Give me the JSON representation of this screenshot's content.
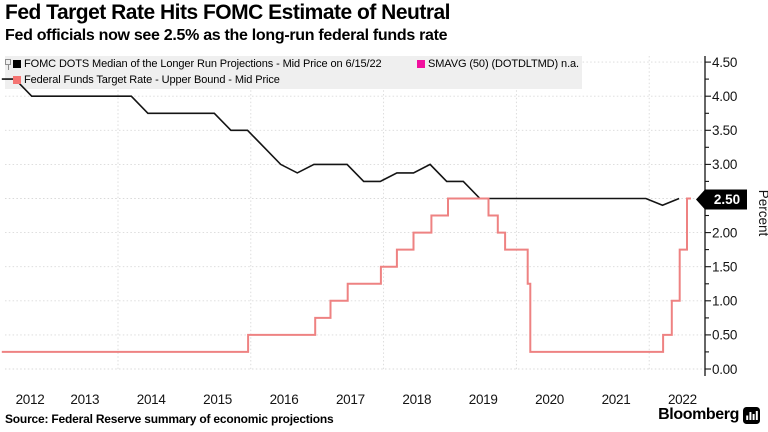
{
  "chart_data": {
    "type": "line",
    "title": "Fed Target Rate Hits FOMC Estimate of Neutral",
    "subtitle": "Fed officials now see 2.5% as the long-run federal funds rate",
    "legend_position": "top-left",
    "x_axis": {
      "tick_years": [
        "2012",
        "2013",
        "2014",
        "2015",
        "2016",
        "2017",
        "2018",
        "2019",
        "2020",
        "2021",
        "2022"
      ],
      "gridline_years": [
        2014,
        2016,
        2018,
        2020,
        2022
      ],
      "range": [
        2012.25,
        2022.85
      ]
    },
    "y_axis": {
      "label": "Percent",
      "side": "right",
      "range": [
        0,
        4.5
      ],
      "ticks": [
        "4.50",
        "4.00",
        "3.50",
        "3.00",
        "2.50",
        "2.00",
        "1.50",
        "1.00",
        "0.50",
        "0.00"
      ],
      "minor_tick_step": 0.25,
      "last_value_tag": "2.50"
    },
    "series": [
      {
        "name": "FOMC DOTS Median of the Longer Run Projections - Mid Price on 6/15/22",
        "color": "#141414",
        "mode": "linear",
        "points": [
          [
            2012.25,
            4.25
          ],
          [
            2012.45,
            4.25
          ],
          [
            2012.7,
            4.0
          ],
          [
            2014.2,
            4.0
          ],
          [
            2014.45,
            3.75
          ],
          [
            2015.45,
            3.75
          ],
          [
            2015.7,
            3.5
          ],
          [
            2015.95,
            3.5
          ],
          [
            2016.2,
            3.25
          ],
          [
            2016.45,
            3.0
          ],
          [
            2016.7,
            2.875
          ],
          [
            2016.95,
            3.0
          ],
          [
            2017.45,
            3.0
          ],
          [
            2017.7,
            2.75
          ],
          [
            2017.95,
            2.75
          ],
          [
            2018.2,
            2.875
          ],
          [
            2018.45,
            2.875
          ],
          [
            2018.7,
            3.0
          ],
          [
            2018.95,
            2.75
          ],
          [
            2019.2,
            2.75
          ],
          [
            2019.45,
            2.5
          ],
          [
            2021.95,
            2.5
          ],
          [
            2022.2,
            2.4
          ],
          [
            2022.45,
            2.5
          ]
        ]
      },
      {
        "name": "Federal Funds Target Rate - Upper Bound - Mid Price",
        "color": "#ee8282",
        "mode": "step",
        "end": 2022.63,
        "points": [
          [
            2012.25,
            0.25
          ],
          [
            2015.96,
            0.5
          ],
          [
            2016.97,
            0.75
          ],
          [
            2017.2,
            1.0
          ],
          [
            2017.46,
            1.25
          ],
          [
            2017.96,
            1.5
          ],
          [
            2018.2,
            1.75
          ],
          [
            2018.45,
            2.0
          ],
          [
            2018.72,
            2.25
          ],
          [
            2018.97,
            2.5
          ],
          [
            2019.58,
            2.25
          ],
          [
            2019.72,
            2.0
          ],
          [
            2019.83,
            1.75
          ],
          [
            2020.17,
            1.25
          ],
          [
            2020.21,
            0.25
          ],
          [
            2022.21,
            0.5
          ],
          [
            2022.34,
            1.0
          ],
          [
            2022.46,
            1.75
          ],
          [
            2022.57,
            2.5
          ]
        ]
      }
    ]
  },
  "legend": {
    "items": [
      {
        "label": "FOMC DOTS Median of the Longer Run Projections - Mid Price on 6/15/22",
        "color": "#000000"
      },
      {
        "label": "SMAVG (50) (DOTDLTMD) n.a.",
        "color": "#f1109e"
      },
      {
        "label": "Federal Funds Target Rate - Upper Bound - Mid Price",
        "color": "#f47472"
      }
    ]
  },
  "footer": {
    "source": "Source: Federal Reserve summary of economic projections",
    "brand": "Bloomberg"
  }
}
